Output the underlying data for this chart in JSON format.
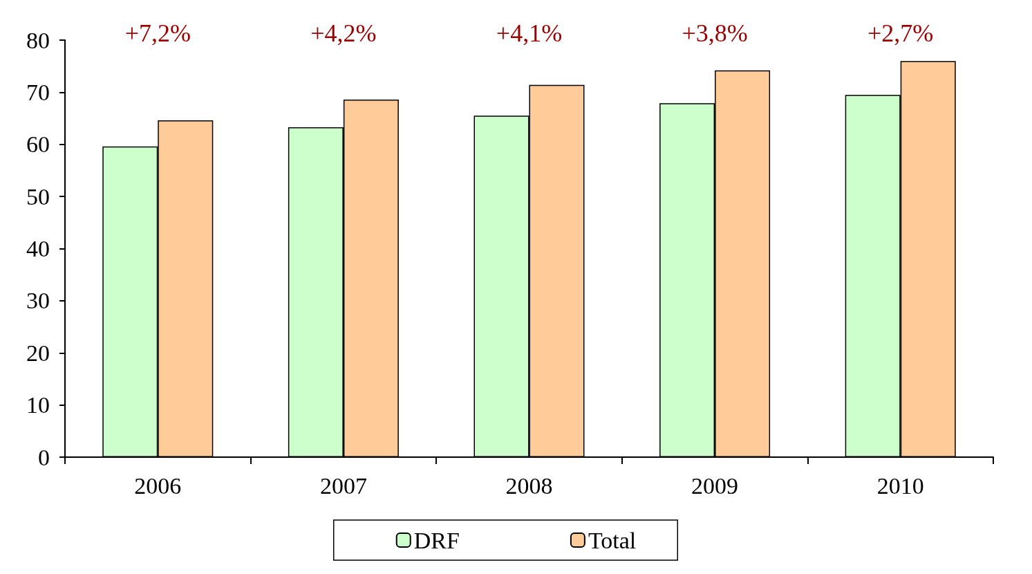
{
  "chart_data": {
    "type": "bar",
    "categories": [
      "2006",
      "2007",
      "2008",
      "2009",
      "2010"
    ],
    "series": [
      {
        "name": "DRF",
        "color": "#ccffcc",
        "values": [
          59.6,
          63.3,
          65.5,
          67.9,
          69.5
        ]
      },
      {
        "name": "Total",
        "color": "#ffcc99",
        "values": [
          64.6,
          68.6,
          71.4,
          74.2,
          76.0
        ]
      }
    ],
    "ylim": [
      0,
      80
    ],
    "yticks": [
      0,
      10,
      20,
      30,
      40,
      50,
      60,
      70,
      80
    ],
    "grid": false,
    "legend": "bottom",
    "annotations": [
      "+7,2%",
      "+4,2%",
      "+4,1%",
      "+3,8%",
      "+2,7%"
    ]
  }
}
